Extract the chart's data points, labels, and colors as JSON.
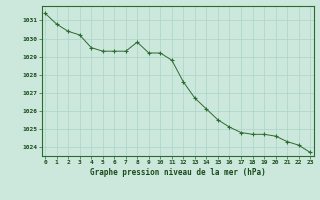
{
  "x": [
    0,
    1,
    2,
    3,
    4,
    5,
    6,
    7,
    8,
    9,
    10,
    11,
    12,
    13,
    14,
    15,
    16,
    17,
    18,
    19,
    20,
    21,
    22,
    23
  ],
  "y": [
    1031.4,
    1030.8,
    1030.4,
    1030.2,
    1029.5,
    1029.3,
    1029.3,
    1029.3,
    1029.8,
    1029.2,
    1029.2,
    1028.8,
    1027.6,
    1026.7,
    1026.1,
    1025.5,
    1025.1,
    1024.8,
    1024.7,
    1024.7,
    1024.6,
    1024.3,
    1024.1,
    1023.7
  ],
  "line_color": "#2d6a2d",
  "marker": "+",
  "marker_size": 3.5,
  "bg_color": "#cce8dd",
  "grid_color": "#aad4c8",
  "xlabel": "Graphe pression niveau de la mer (hPa)",
  "tick_label_color": "#1a4a1a",
  "ylim": [
    1023.5,
    1031.8
  ],
  "yticks": [
    1024,
    1025,
    1026,
    1027,
    1028,
    1029,
    1030,
    1031
  ],
  "xticks": [
    0,
    1,
    2,
    3,
    4,
    5,
    6,
    7,
    8,
    9,
    10,
    11,
    12,
    13,
    14,
    15,
    16,
    17,
    18,
    19,
    20,
    21,
    22,
    23
  ],
  "xlim": [
    -0.3,
    23.3
  ]
}
